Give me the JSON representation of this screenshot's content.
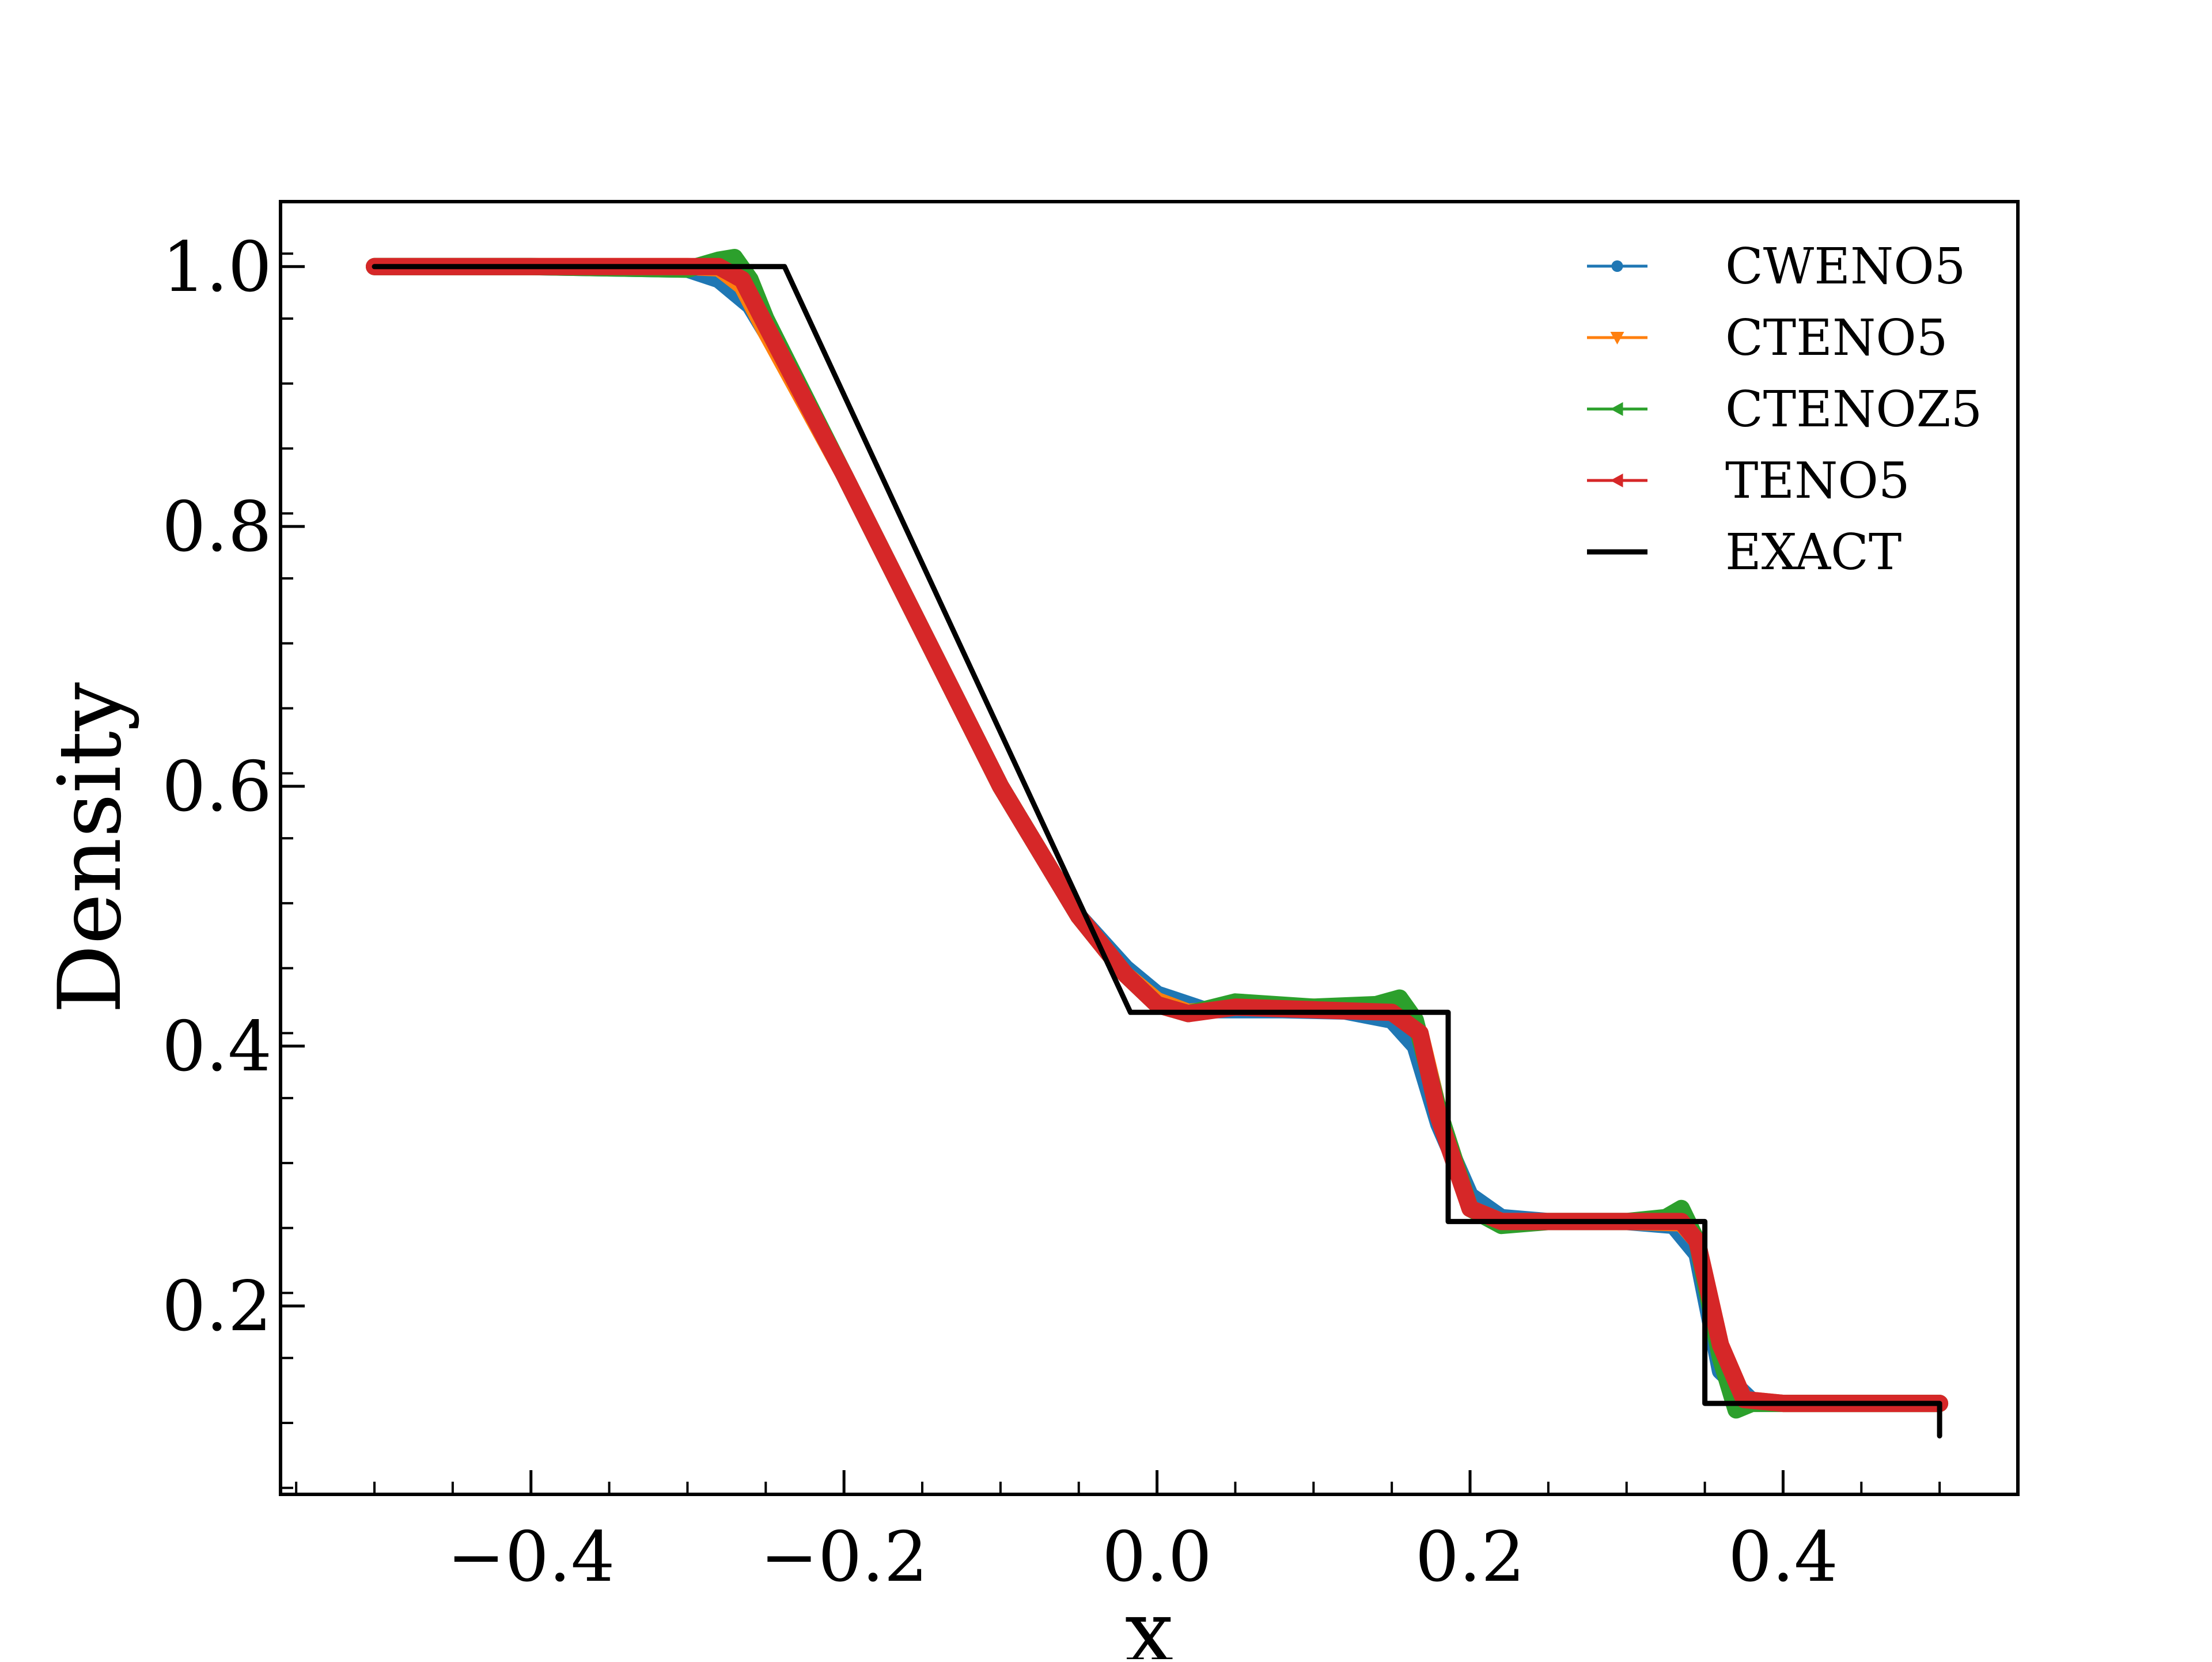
{
  "chart_data": {
    "type": "line",
    "title": "",
    "xlabel": "x",
    "ylabel": "Density",
    "xlim": [
      -0.56,
      0.55
    ],
    "ylim": [
      0.055,
      1.05
    ],
    "x_ticks": [
      -0.4,
      -0.2,
      0.0,
      0.2,
      0.4
    ],
    "x_tick_labels": [
      "−0.4",
      "−0.2",
      "0.0",
      "0.2",
      "0.4"
    ],
    "y_ticks": [
      0.2,
      0.4,
      0.6,
      0.8,
      1.0
    ],
    "y_tick_labels": [
      "0.2",
      "0.4",
      "0.6",
      "0.8",
      "1.0"
    ],
    "grid": false,
    "legend_position": "top-right",
    "series": [
      {
        "name": "CWENO5",
        "color": "#1f77b4",
        "marker": "circle",
        "x": [
          -0.5,
          -0.4,
          -0.3,
          -0.28,
          -0.26,
          -0.24,
          -0.2,
          -0.15,
          -0.1,
          -0.05,
          -0.02,
          0.0,
          0.03,
          0.08,
          0.12,
          0.15,
          0.165,
          0.18,
          0.2,
          0.22,
          0.25,
          0.3,
          0.33,
          0.345,
          0.36,
          0.38,
          0.4,
          0.45,
          0.5
        ],
        "y": [
          1.0,
          1.0,
          0.998,
          0.99,
          0.97,
          0.93,
          0.84,
          0.72,
          0.6,
          0.5,
          0.46,
          0.44,
          0.428,
          0.428,
          0.427,
          0.42,
          0.4,
          0.34,
          0.285,
          0.268,
          0.265,
          0.265,
          0.262,
          0.24,
          0.15,
          0.127,
          0.125,
          0.125,
          0.125
        ]
      },
      {
        "name": "CTENO5",
        "color": "#ff7f0e",
        "marker": "triangle-down",
        "x": [
          -0.5,
          -0.4,
          -0.3,
          -0.28,
          -0.265,
          -0.25,
          -0.2,
          -0.15,
          -0.1,
          -0.05,
          -0.02,
          0.0,
          0.02,
          0.05,
          0.1,
          0.15,
          0.168,
          0.18,
          0.2,
          0.22,
          0.25,
          0.3,
          0.335,
          0.345,
          0.36,
          0.375,
          0.4,
          0.45,
          0.5
        ],
        "y": [
          1.0,
          1.0,
          1.0,
          0.999,
          0.985,
          0.95,
          0.84,
          0.72,
          0.6,
          0.5,
          0.455,
          0.435,
          0.426,
          0.43,
          0.43,
          0.428,
          0.41,
          0.35,
          0.275,
          0.265,
          0.265,
          0.265,
          0.264,
          0.25,
          0.17,
          0.128,
          0.125,
          0.125,
          0.125
        ]
      },
      {
        "name": "CTENOZ5",
        "color": "#2ca02c",
        "marker": "triangle-left",
        "x": [
          -0.5,
          -0.4,
          -0.3,
          -0.28,
          -0.27,
          -0.26,
          -0.25,
          -0.2,
          -0.15,
          -0.1,
          -0.05,
          -0.02,
          0.0,
          0.02,
          0.05,
          0.1,
          0.14,
          0.155,
          0.165,
          0.18,
          0.2,
          0.22,
          0.25,
          0.3,
          0.325,
          0.335,
          0.345,
          0.36,
          0.37,
          0.38,
          0.4,
          0.45,
          0.5
        ],
        "y": [
          1.0,
          1.0,
          0.998,
          1.005,
          1.007,
          0.99,
          0.96,
          0.84,
          0.72,
          0.6,
          0.5,
          0.455,
          0.432,
          0.425,
          0.434,
          0.43,
          0.432,
          0.437,
          0.42,
          0.35,
          0.275,
          0.262,
          0.265,
          0.265,
          0.268,
          0.275,
          0.25,
          0.16,
          0.12,
          0.125,
          0.125,
          0.125,
          0.125
        ]
      },
      {
        "name": "TENO5",
        "color": "#d62728",
        "marker": "triangle-left",
        "x": [
          -0.5,
          -0.4,
          -0.3,
          -0.28,
          -0.265,
          -0.25,
          -0.2,
          -0.15,
          -0.1,
          -0.05,
          -0.02,
          0.0,
          0.02,
          0.05,
          0.1,
          0.15,
          0.168,
          0.18,
          0.2,
          0.22,
          0.25,
          0.3,
          0.335,
          0.345,
          0.36,
          0.375,
          0.4,
          0.45,
          0.5
        ],
        "y": [
          1.0,
          1.0,
          1.0,
          1.0,
          0.99,
          0.955,
          0.84,
          0.72,
          0.6,
          0.5,
          0.455,
          0.432,
          0.425,
          0.43,
          0.428,
          0.426,
          0.41,
          0.345,
          0.275,
          0.265,
          0.265,
          0.265,
          0.265,
          0.25,
          0.17,
          0.128,
          0.125,
          0.125,
          0.125
        ]
      },
      {
        "name": "EXACT",
        "color": "#000000",
        "marker": "none",
        "x": [
          -0.5,
          -0.238,
          -0.017,
          0.186,
          0.186,
          0.35,
          0.35,
          0.5,
          0.5
        ],
        "y": [
          1.0,
          1.0,
          0.426,
          0.426,
          0.265,
          0.265,
          0.125,
          0.125,
          0.1
        ]
      }
    ]
  }
}
